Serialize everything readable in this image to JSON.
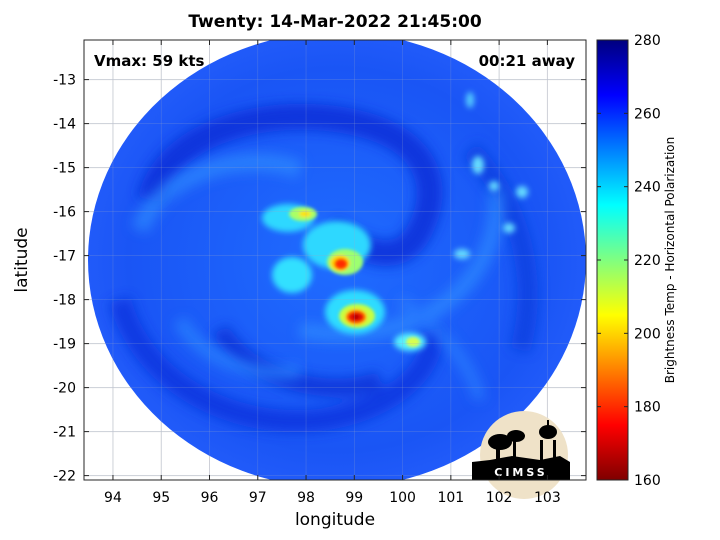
{
  "title": "Twenty: 14-Mar-2022 21:45:00",
  "vmax_label": "Vmax: 59 kts",
  "time_away_label": "00:21 away",
  "x_axis_label": "longitude",
  "y_axis_label": "latitude",
  "colorbar_label": "Brightness Temp - Horizontal Polarization",
  "logo_text": "CIMSS",
  "map": {
    "lon_range": [
      93.4,
      103.8
    ],
    "lat_range": [
      -22.1,
      -12.1
    ],
    "lon_ticks": [
      94,
      95,
      96,
      97,
      98,
      99,
      100,
      101,
      102,
      103
    ],
    "lat_ticks": [
      -13,
      -14,
      -15,
      -16,
      -17,
      -18,
      -19,
      -20,
      -21,
      -22
    ],
    "grid": true,
    "swath_center": [
      98.8,
      -17.1
    ],
    "storm_center": [
      99.0,
      -17.7
    ]
  },
  "colorbar": {
    "min": 160,
    "max": 280,
    "ticks": [
      280,
      260,
      240,
      220,
      200,
      180,
      160
    ],
    "colors": [
      "#7f0000",
      "#ff0000",
      "#ff8000",
      "#ffff00",
      "#80ff80",
      "#00ffff",
      "#0080ff",
      "#0000ff",
      "#00007f"
    ]
  }
}
